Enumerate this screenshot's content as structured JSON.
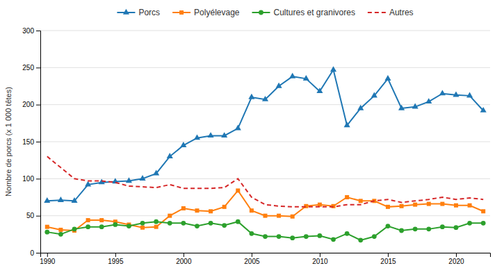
{
  "chart_data": {
    "type": "line",
    "x": [
      1990,
      1991,
      1992,
      1993,
      1994,
      1995,
      1996,
      1997,
      1998,
      1999,
      2000,
      2001,
      2002,
      2003,
      2004,
      2005,
      2006,
      2007,
      2008,
      2009,
      2010,
      2011,
      2012,
      2013,
      2014,
      2015,
      2016,
      2017,
      2018,
      2019,
      2020,
      2021,
      2022
    ],
    "xlim": [
      1989.5,
      2022.5
    ],
    "xticks": [
      1990,
      1995,
      2000,
      2005,
      2010,
      2015,
      2020
    ],
    "ylim": [
      0,
      300
    ],
    "yticks": [
      0,
      50,
      100,
      150,
      200,
      250,
      300
    ],
    "y_label": "Nombre de porcs (x 1 000 têtes)",
    "grid": true,
    "legend": "top",
    "series": [
      {
        "name": "Porcs",
        "marker": "triangle",
        "line_style": "solid",
        "values": [
          70,
          71,
          70,
          92,
          95,
          96,
          97,
          100,
          107,
          130,
          145,
          155,
          158,
          158,
          168,
          210,
          207,
          225,
          238,
          235,
          218,
          247,
          172,
          195,
          212,
          235,
          195,
          197,
          204,
          215,
          213,
          212,
          192
        ]
      },
      {
        "name": "Polyélevage",
        "marker": "square",
        "line_style": "solid",
        "values": [
          35,
          31,
          30,
          44,
          44,
          42,
          38,
          34,
          35,
          50,
          60,
          57,
          56,
          62,
          84,
          57,
          50,
          50,
          49,
          63,
          65,
          63,
          75,
          70,
          70,
          62,
          63,
          65,
          66,
          66,
          64,
          64,
          56
        ]
      },
      {
        "name": "Cultures et granivores",
        "marker": "circle",
        "line_style": "solid",
        "values": [
          28,
          25,
          32,
          35,
          35,
          38,
          36,
          40,
          42,
          40,
          40,
          36,
          40,
          37,
          42,
          26,
          22,
          22,
          20,
          22,
          23,
          18,
          26,
          17,
          22,
          36,
          30,
          32,
          32,
          35,
          34,
          40,
          40
        ]
      },
      {
        "name": "Autres",
        "marker": "none",
        "line_style": "dashed",
        "values": [
          130,
          115,
          100,
          97,
          97,
          95,
          90,
          89,
          88,
          92,
          87,
          87,
          87,
          88,
          100,
          75,
          65,
          63,
          62,
          62,
          62,
          62,
          65,
          65,
          70,
          72,
          68,
          70,
          72,
          75,
          72,
          74,
          72
        ]
      }
    ]
  }
}
